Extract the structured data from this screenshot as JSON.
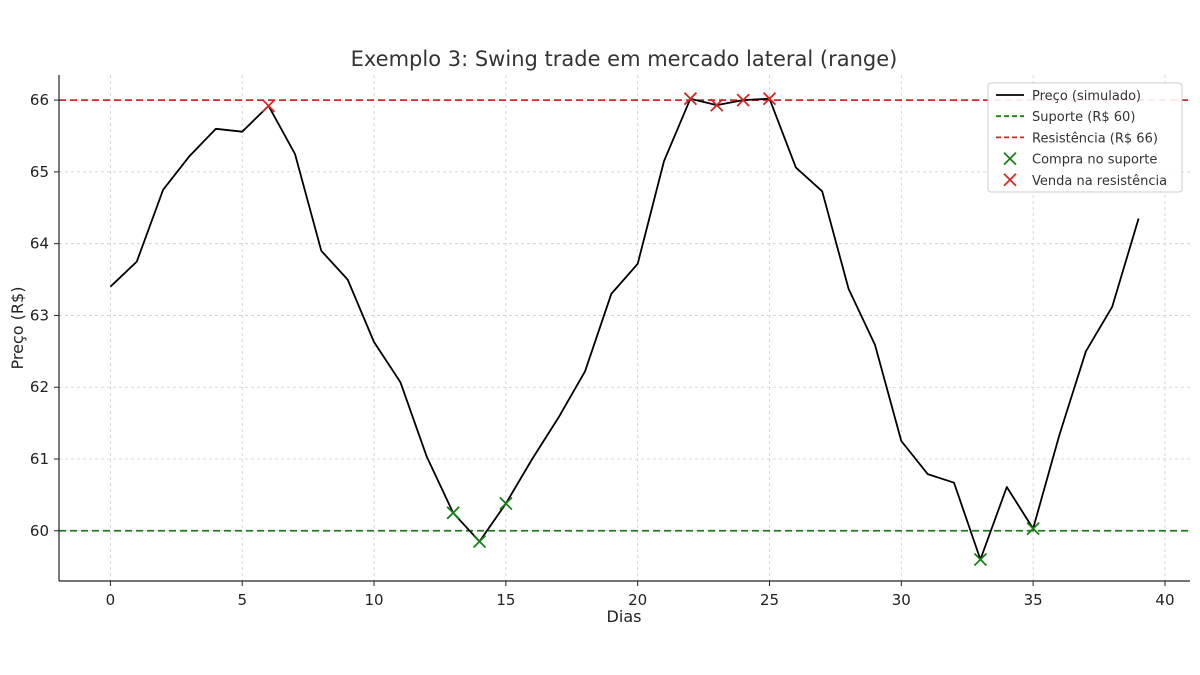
{
  "chart_data": {
    "type": "line",
    "title": "Exemplo 3: Swing trade em mercado lateral (range)",
    "xlabel": "Dias",
    "ylabel": "Preço (R$)",
    "xlim": [
      -1.95,
      40.95
    ],
    "ylim": [
      59.3,
      66.35
    ],
    "xticks": [
      0,
      5,
      10,
      15,
      20,
      25,
      30,
      35,
      40
    ],
    "yticks": [
      60,
      61,
      62,
      63,
      64,
      65,
      66
    ],
    "grid": true,
    "legend_position": "top-right",
    "series": [
      {
        "name": "Preço (simulado)",
        "color": "#000000",
        "x": [
          0,
          1,
          2,
          3,
          4,
          5,
          6,
          7,
          8,
          9,
          10,
          11,
          12,
          13,
          14,
          15,
          16,
          17,
          18,
          19,
          20,
          21,
          22,
          23,
          24,
          25,
          26,
          27,
          28,
          29,
          30,
          31,
          32,
          33,
          34,
          35,
          36,
          37,
          38,
          39
        ],
        "y": [
          63.4,
          63.75,
          64.75,
          65.22,
          65.6,
          65.56,
          65.92,
          65.25,
          63.9,
          63.5,
          62.63,
          62.07,
          61.03,
          60.25,
          59.85,
          60.38,
          61.0,
          61.58,
          62.22,
          63.3,
          63.72,
          65.15,
          66.02,
          65.93,
          66.0,
          66.02,
          65.06,
          64.73,
          63.37,
          62.59,
          61.25,
          60.79,
          60.67,
          59.6,
          60.61,
          60.03,
          61.34,
          62.5,
          63.12,
          64.35
        ]
      }
    ],
    "hlines": [
      {
        "name": "Suporte (R$ 60)",
        "y": 60,
        "color": "#1a7f1a",
        "style": "dashed"
      },
      {
        "name": "Resistência (R$ 66)",
        "y": 66,
        "color": "#d62728",
        "style": "dashed"
      }
    ],
    "markers": [
      {
        "name": "Compra no suporte",
        "color": "#1a7f1a",
        "symbol": "x",
        "points": [
          [
            13,
            60.25
          ],
          [
            14,
            59.85
          ],
          [
            15,
            60.38
          ],
          [
            33,
            59.6
          ],
          [
            35,
            60.03
          ]
        ]
      },
      {
        "name": "Venda na resistência",
        "color": "#d62728",
        "symbol": "x",
        "points": [
          [
            6,
            65.92
          ],
          [
            22,
            66.02
          ],
          [
            23,
            65.93
          ],
          [
            24,
            66.0
          ],
          [
            25,
            66.02
          ]
        ]
      }
    ]
  }
}
